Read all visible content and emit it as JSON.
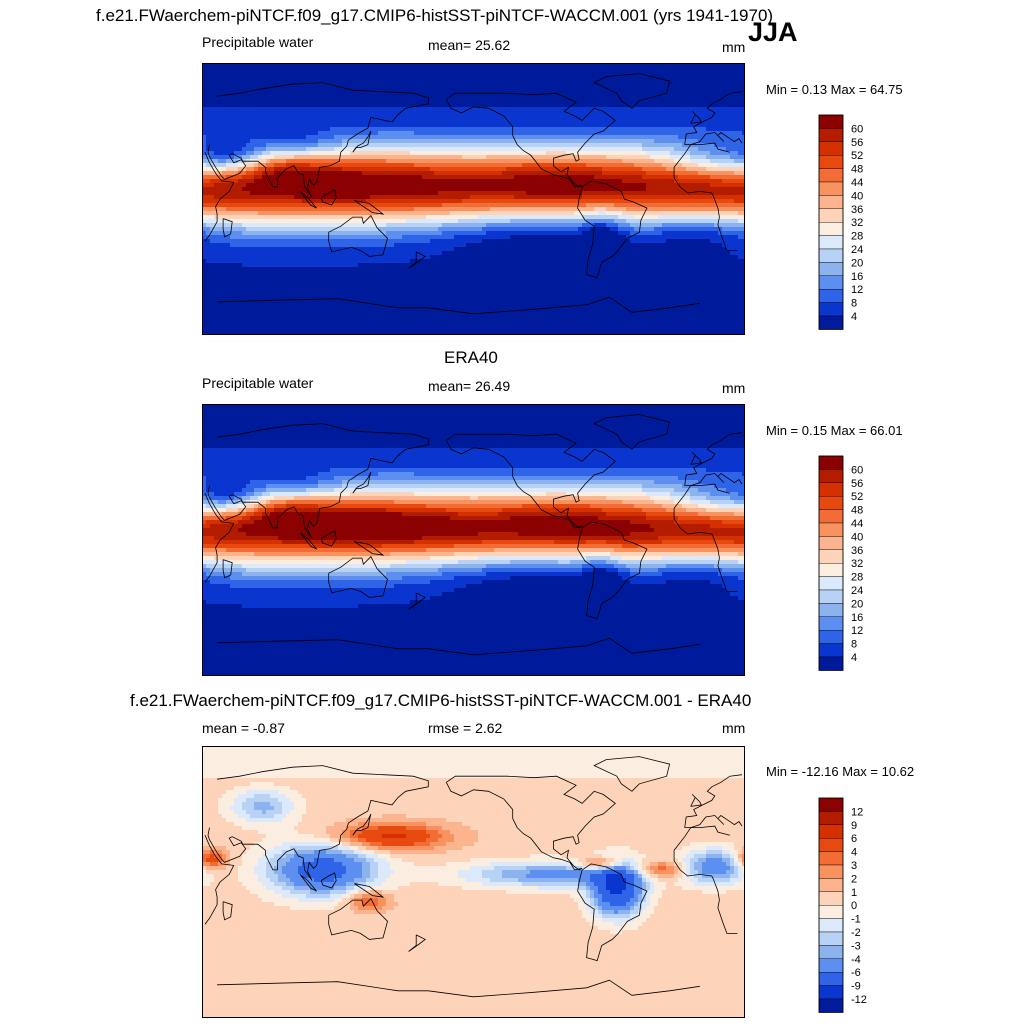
{
  "header": {
    "title": "f.e21.FWaerchem-piNTCF.f09_g17.CMIP6-histSST-piNTCF-WACCM.001 (yrs 1941-1970)",
    "season": "JJA"
  },
  "panels": [
    {
      "id": "model",
      "variable": "Precipitable water",
      "stat": "mean=  25.62",
      "units": "mm",
      "minmax": "Min =   0.13 Max =  64.75",
      "field_type": "pw_model"
    },
    {
      "id": "obs",
      "title": "ERA40",
      "variable": "Precipitable water",
      "stat": "mean=  26.49",
      "units": "mm",
      "minmax": "Min =   0.15 Max =  66.01",
      "field_type": "pw_obs"
    },
    {
      "id": "diff",
      "title": "f.e21.FWaerchem-piNTCF.f09_g17.CMIP6-histSST-piNTCF-WACCM.001 - ERA40",
      "mean_label": "mean =  -0.87",
      "rmse_label": "rmse =   2.62",
      "units": "mm",
      "minmax": "Min = -12.16 Max =  10.62",
      "field_type": "diff"
    }
  ],
  "colorbars": {
    "pw": {
      "labels": [
        "60",
        "56",
        "52",
        "48",
        "44",
        "40",
        "36",
        "32",
        "28",
        "24",
        "20",
        "16",
        "12",
        "8",
        "4"
      ],
      "colors": [
        "#8b0000",
        "#b41c00",
        "#d53000",
        "#e8490f",
        "#f36c35",
        "#f8935f",
        "#fbb48d",
        "#fdd4b9",
        "#fbeee0",
        "#dbe9fb",
        "#b8d2f6",
        "#8db3ef",
        "#5d8ff0",
        "#2f63e8",
        "#0a36cf",
        "#001a9c"
      ]
    },
    "diff": {
      "labels": [
        "12",
        "9",
        "6",
        "4",
        "3",
        "2",
        "1",
        "0",
        "-1",
        "-2",
        "-3",
        "-4",
        "-6",
        "-9",
        "-12"
      ],
      "colors": [
        "#8b0000",
        "#b41c00",
        "#d53000",
        "#e8490f",
        "#f36c35",
        "#f8935f",
        "#fbb48d",
        "#fdd4b9",
        "#fbeee0",
        "#dbe9fb",
        "#b8d2f6",
        "#8db3ef",
        "#5d8ff0",
        "#2f63e8",
        "#0a36cf",
        "#001a9c"
      ]
    }
  }
}
